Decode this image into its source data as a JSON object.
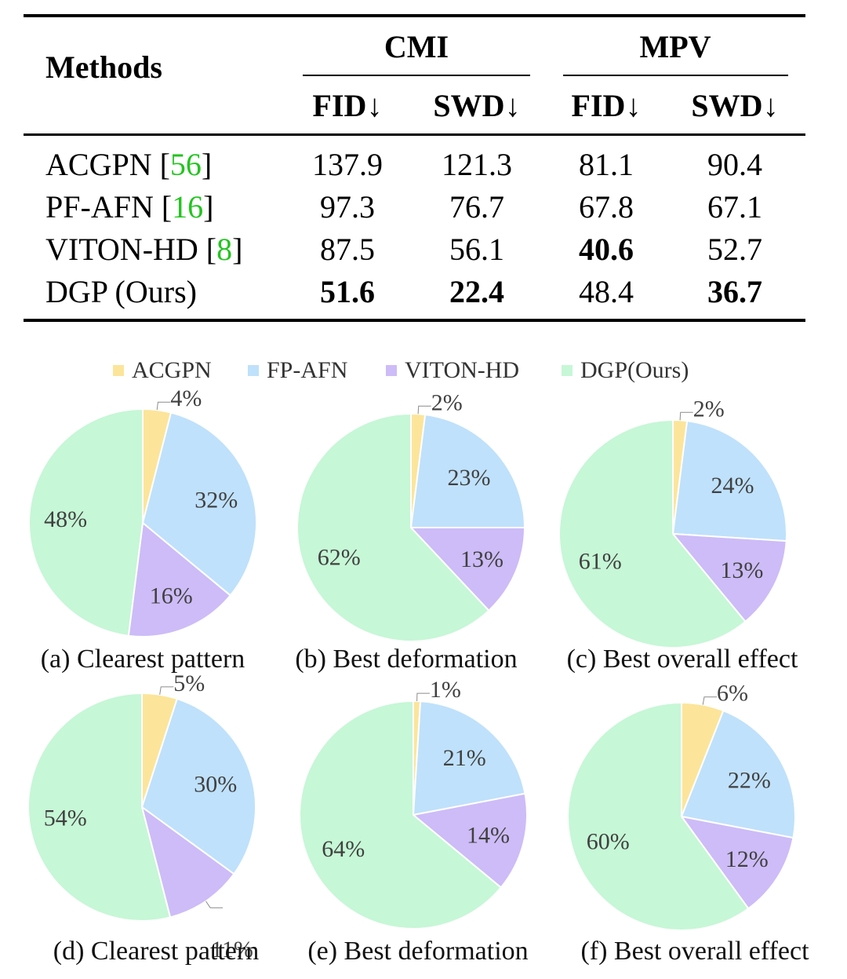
{
  "table": {
    "methods_header": "Methods",
    "groups": [
      {
        "name": "CMI",
        "cols": [
          "FID↓",
          "SWD↓"
        ]
      },
      {
        "name": "MPV",
        "cols": [
          "FID↓",
          "SWD↓"
        ]
      }
    ],
    "rows": [
      {
        "name": "ACGPN ",
        "ref": "56",
        "values": [
          "137.9",
          "121.3",
          "81.1",
          "90.4"
        ],
        "bold": [
          false,
          false,
          false,
          false
        ]
      },
      {
        "name": "PF-AFN ",
        "ref": "16",
        "values": [
          "97.3",
          "76.7",
          "67.8",
          "67.1"
        ],
        "bold": [
          false,
          false,
          false,
          false
        ]
      },
      {
        "name": "VITON-HD ",
        "ref": "8",
        "values": [
          "87.5",
          "56.1",
          "40.6",
          "52.7"
        ],
        "bold": [
          false,
          false,
          true,
          false
        ]
      },
      {
        "name": "DGP (Ours)",
        "ref": "",
        "values": [
          "51.6",
          "22.4",
          "48.4",
          "36.7"
        ],
        "bold": [
          true,
          true,
          false,
          true
        ]
      }
    ]
  },
  "legend": [
    {
      "label": "ACGPN",
      "color": "#fce59a"
    },
    {
      "label": "FP-AFN",
      "color": "#bfe1fb"
    },
    {
      "label": "VITON-HD",
      "color": "#cdbcf7"
    },
    {
      "label": "DGP(Ours)",
      "color": "#c6f7d6"
    }
  ],
  "chart_data": [
    {
      "type": "pie",
      "title": "(a) Clearest pattern",
      "labels": [
        "ACGPN",
        "FP-AFN",
        "VITON-HD",
        "DGP(Ours)"
      ],
      "values": [
        4,
        32,
        16,
        48
      ],
      "value_labels": [
        "4%",
        "32%",
        "16%",
        "48%"
      ]
    },
    {
      "type": "pie",
      "title": "(b) Best deformation",
      "labels": [
        "ACGPN",
        "FP-AFN",
        "VITON-HD",
        "DGP(Ours)"
      ],
      "values": [
        2,
        23,
        13,
        62
      ],
      "value_labels": [
        "2%",
        "23%",
        "13%",
        "62%"
      ]
    },
    {
      "type": "pie",
      "title": "(c) Best overall effect",
      "labels": [
        "ACGPN",
        "FP-AFN",
        "VITON-HD",
        "DGP(Ours)"
      ],
      "values": [
        2,
        24,
        13,
        61
      ],
      "value_labels": [
        "2%",
        "24%",
        "13%",
        "61%"
      ]
    },
    {
      "type": "pie",
      "title": "(d) Clearest pattern",
      "labels": [
        "ACGPN",
        "FP-AFN",
        "VITON-HD",
        "DGP(Ours)"
      ],
      "values": [
        5,
        30,
        11,
        54
      ],
      "value_labels": [
        "5%",
        "30%",
        "11%",
        "54%"
      ]
    },
    {
      "type": "pie",
      "title": "(e) Best deformation",
      "labels": [
        "ACGPN",
        "FP-AFN",
        "VITON-HD",
        "DGP(Ours)"
      ],
      "values": [
        1,
        21,
        14,
        64
      ],
      "value_labels": [
        "1%",
        "21%",
        "14%",
        "64%"
      ]
    },
    {
      "type": "pie",
      "title": "(f) Best overall effect",
      "labels": [
        "ACGPN",
        "FP-AFN",
        "VITON-HD",
        "DGP(Ours)"
      ],
      "values": [
        6,
        22,
        12,
        60
      ],
      "value_labels": [
        "6%",
        "22%",
        "12%",
        "60%"
      ]
    }
  ]
}
